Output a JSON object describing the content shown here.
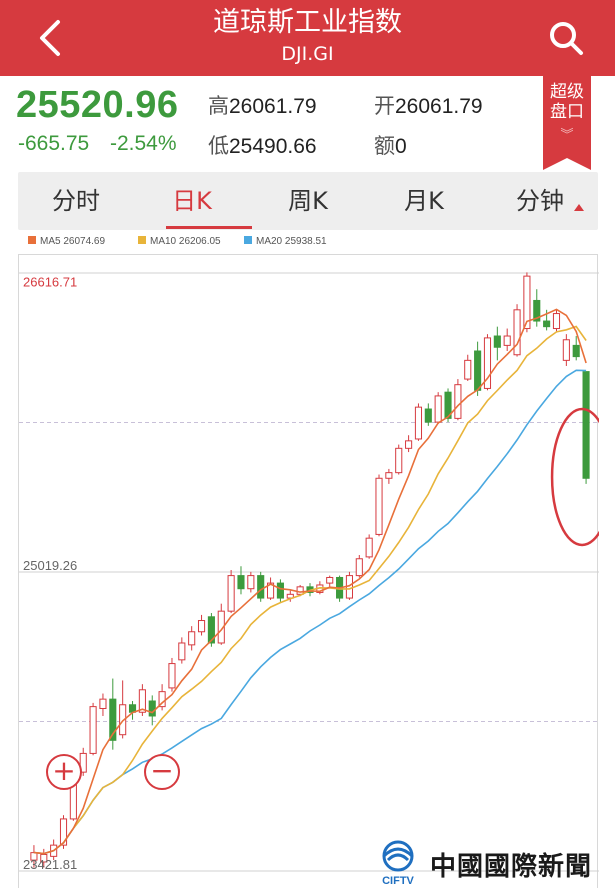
{
  "header": {
    "title": "道琼斯工业指数",
    "subtitle": "DJI.GI",
    "back_icon": "chevron-left-icon",
    "search_icon": "search-icon"
  },
  "quote": {
    "price": "25520.96",
    "change": "-665.75",
    "change_pct": "-2.54%",
    "high_label": "高",
    "high_value": "26061.79",
    "open_label": "开",
    "open_value": "26061.79",
    "low_label": "低",
    "low_value": "25490.66",
    "amount_label": "额",
    "amount_value": "0",
    "down_color": "#3d9a3d"
  },
  "super_panel": {
    "line1": "超级",
    "line2": "盘口",
    "chevron": "»"
  },
  "tabs": [
    {
      "label": "分时",
      "active": false
    },
    {
      "label": "日K",
      "active": true
    },
    {
      "label": "周K",
      "active": false
    },
    {
      "label": "月K",
      "active": false
    },
    {
      "label": "分钟",
      "active": false
    }
  ],
  "legend": [
    {
      "label": "MA5 26074.69",
      "color": "#e8703a"
    },
    {
      "label": "MA10 26206.05",
      "color": "#e8b43a"
    },
    {
      "label": "MA20 25938.51",
      "color": "#4aa8e0"
    }
  ],
  "zoom": {
    "in": "+",
    "out": "−"
  },
  "watermark": {
    "text": "中國國際新聞臺",
    "logo_text": "CIFTV"
  },
  "chart_data": {
    "type": "candlestick",
    "y_labels": [
      "26616.71",
      "25019.26",
      "23421.81"
    ],
    "ylim": [
      23421.81,
      26616.71
    ],
    "up_color": "#d63a3f",
    "down_color": "#3d9a3d",
    "annotation": "red ellipse highlighting last bearish candle",
    "candles": [
      [
        23480,
        23520,
        23440,
        23560
      ],
      [
        23470,
        23510,
        23440,
        23540
      ],
      [
        23500,
        23560,
        23480,
        23590
      ],
      [
        23560,
        23700,
        23540,
        23720
      ],
      [
        23700,
        23960,
        23690,
        23980
      ],
      [
        23950,
        24050,
        23930,
        24080
      ],
      [
        24050,
        24300,
        24040,
        24320
      ],
      [
        24290,
        24340,
        24250,
        24370
      ],
      [
        24340,
        24120,
        24070,
        24450
      ],
      [
        24150,
        24310,
        24130,
        24440
      ],
      [
        24310,
        24270,
        24230,
        24330
      ],
      [
        24270,
        24390,
        24250,
        24420
      ],
      [
        24330,
        24250,
        24200,
        24360
      ],
      [
        24300,
        24380,
        24280,
        24420
      ],
      [
        24400,
        24530,
        24380,
        24560
      ],
      [
        24550,
        24640,
        24530,
        24670
      ],
      [
        24630,
        24700,
        24600,
        24730
      ],
      [
        24700,
        24760,
        24680,
        24790
      ],
      [
        24780,
        24640,
        24620,
        24800
      ],
      [
        24640,
        24810,
        24630,
        24850
      ],
      [
        24810,
        25000,
        24800,
        25030
      ],
      [
        25000,
        24930,
        24900,
        25050
      ],
      [
        24930,
        25000,
        24910,
        25020
      ],
      [
        25000,
        24880,
        24860,
        25020
      ],
      [
        24880,
        24960,
        24870,
        24990
      ],
      [
        24960,
        24880,
        24860,
        24980
      ],
      [
        24880,
        24900,
        24860,
        24920
      ],
      [
        24900,
        24940,
        24890,
        24950
      ],
      [
        24940,
        24910,
        24890,
        24960
      ],
      [
        24910,
        24950,
        24900,
        24970
      ],
      [
        24960,
        24990,
        24940,
        25000
      ],
      [
        24990,
        24880,
        24860,
        25000
      ],
      [
        24880,
        25000,
        24870,
        25020
      ],
      [
        25000,
        25090,
        24990,
        25110
      ],
      [
        25100,
        25200,
        25090,
        25220
      ],
      [
        25220,
        25520,
        25210,
        25540
      ],
      [
        25520,
        25550,
        25490,
        25570
      ],
      [
        25550,
        25680,
        25540,
        25700
      ],
      [
        25680,
        25720,
        25660,
        25750
      ],
      [
        25730,
        25900,
        25720,
        25920
      ],
      [
        25890,
        25820,
        25800,
        25920
      ],
      [
        25820,
        25960,
        25810,
        25980
      ],
      [
        25980,
        25840,
        25820,
        26000
      ],
      [
        25840,
        26020,
        25830,
        26050
      ],
      [
        26050,
        26150,
        26040,
        26180
      ],
      [
        26200,
        25990,
        25960,
        26250
      ],
      [
        26000,
        26270,
        25990,
        26290
      ],
      [
        26280,
        26220,
        26150,
        26330
      ],
      [
        26230,
        26280,
        26200,
        26320
      ],
      [
        26180,
        26420,
        26170,
        26450
      ],
      [
        26320,
        26600,
        26300,
        26620
      ],
      [
        26470,
        26360,
        26330,
        26530
      ],
      [
        26360,
        26330,
        26310,
        26420
      ],
      [
        26320,
        26400,
        26300,
        26420
      ],
      [
        26150,
        26260,
        26120,
        26290
      ],
      [
        26230,
        26170,
        26150,
        26280
      ],
      [
        26090,
        25520,
        25490,
        26090
      ]
    ]
  }
}
